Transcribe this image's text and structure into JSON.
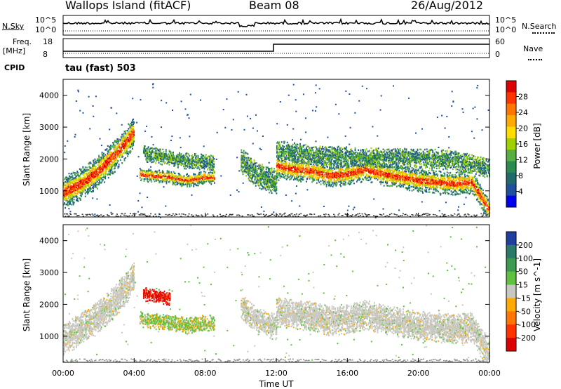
{
  "header": {
    "station": "Wallops Island (fitACF)",
    "beam": "Beam 08",
    "date": "26/Aug/2012"
  },
  "noise_panel": {
    "left_label": "N.Sky",
    "left_ticks": [
      "10^5",
      "10^0"
    ],
    "right_ticks": [
      "10^5",
      "10^0"
    ],
    "right_label": "N.Search"
  },
  "freq_panel": {
    "left_label_top": "Freq.",
    "left_label_unit": "[MHz]",
    "left_ticks": [
      "18",
      "8"
    ],
    "right_ticks": [
      "60",
      "0"
    ],
    "right_label": "Nave",
    "cpid_label": "CPID",
    "mode_label": "tau (fast) 503"
  },
  "power_colorbar": {
    "title": "Power [dB]",
    "ticks": [
      "28",
      "24",
      "20",
      "16",
      "12",
      "8",
      "4"
    ],
    "colors": [
      "#dd0000",
      "#ff3300",
      "#ff7700",
      "#ffaa00",
      "#ffdd00",
      "#a0d000",
      "#55b040",
      "#2a8a50",
      "#1f6b6b",
      "#1f4f9f",
      "#0000ee"
    ]
  },
  "velocity_colorbar": {
    "title": "Velocity [m s^-1]",
    "ticks": [
      "200",
      "100",
      "50",
      "15",
      "-15",
      "-50",
      "-100",
      "-200"
    ],
    "colors": [
      "#1f3fa0",
      "#2a7a6a",
      "#3a9a50",
      "#60c040",
      "#c8c8c0",
      "#ffaa00",
      "#ff7700",
      "#ff3300",
      "#dd0000"
    ]
  },
  "chart_data": [
    {
      "type": "heatmap",
      "title": "Power",
      "ylabel": "Slant Range [km]",
      "ylim": [
        180,
        4500
      ],
      "yticks": [
        1000,
        2000,
        3000,
        4000
      ],
      "xlim": [
        0,
        24
      ],
      "echo_bands": [
        {
          "x": [
            0,
            1,
            2,
            3,
            3.6,
            4.0
          ],
          "center_km": [
            950,
            1250,
            1650,
            2200,
            2600,
            2900
          ],
          "width_km": 500,
          "strong": true
        },
        {
          "x": [
            4.3,
            5,
            6,
            7,
            8,
            8.5
          ],
          "center_km": [
            1550,
            1500,
            1450,
            1350,
            1450,
            1450
          ],
          "width_km": 200,
          "strong": true
        },
        {
          "x": [
            4.5,
            5.5,
            6.5,
            7.5,
            8.5
          ],
          "center_km": [
            2200,
            2100,
            2000,
            1950,
            1900
          ],
          "width_km": 250,
          "strong": false
        },
        {
          "x": [
            10,
            10.5,
            11,
            11.5,
            12
          ],
          "center_km": [
            2000,
            1700,
            1500,
            1400,
            1300
          ],
          "width_km": 400,
          "strong": false
        },
        {
          "x": [
            12,
            13,
            14,
            15,
            16,
            17,
            18,
            19,
            20,
            21,
            22,
            23,
            24
          ],
          "center_km": [
            1800,
            1700,
            1650,
            1500,
            1550,
            1700,
            1550,
            1450,
            1350,
            1300,
            1250,
            1300,
            400
          ],
          "width_km": 350,
          "strong": true
        },
        {
          "x": [
            12,
            14,
            16,
            18,
            20,
            22,
            24
          ],
          "center_km": [
            2300,
            2150,
            2100,
            2050,
            2050,
            2000,
            1700
          ],
          "width_km": 300,
          "strong": false
        }
      ]
    },
    {
      "type": "heatmap",
      "title": "Velocity",
      "ylabel": "Slant Range [km]",
      "xlabel": "Time UT",
      "ylim": [
        180,
        4500
      ],
      "yticks": [
        1000,
        2000,
        3000,
        4000
      ],
      "xlim": [
        0,
        24
      ],
      "xticks": [
        "00:00",
        "04:00",
        "08:00",
        "12:00",
        "16:00",
        "20:00",
        "00:00"
      ],
      "echo_bands": [
        {
          "x": [
            0,
            1,
            2,
            3,
            3.6,
            4.0
          ],
          "center_km": [
            950,
            1250,
            1650,
            2200,
            2600,
            2900
          ],
          "width_km": 500,
          "velocity_class": "-15 to 15"
        },
        {
          "x": [
            4.3,
            5,
            6,
            7,
            8,
            8.5
          ],
          "center_km": [
            1550,
            1500,
            1450,
            1350,
            1450,
            1450
          ],
          "width_km": 250,
          "velocity_class": "15 to 50 / -50 to -15"
        },
        {
          "x": [
            4.5,
            5.0,
            5.5,
            6.0
          ],
          "center_km": [
            2350,
            2300,
            2250,
            2200
          ],
          "width_km": 200,
          "velocity_class": "-200 to -100"
        },
        {
          "x": [
            10,
            10.5,
            11,
            11.5,
            12
          ],
          "center_km": [
            2000,
            1700,
            1500,
            1400,
            1300
          ],
          "width_km": 400,
          "velocity_class": "-15 to 15"
        },
        {
          "x": [
            12,
            13,
            14,
            15,
            16,
            17,
            18,
            19,
            20,
            21,
            22,
            23,
            24
          ],
          "center_km": [
            1800,
            1700,
            1650,
            1500,
            1550,
            1700,
            1550,
            1450,
            1350,
            1300,
            1250,
            1300,
            400
          ],
          "width_km": 450,
          "velocity_class": "-15 to 15"
        }
      ]
    }
  ]
}
